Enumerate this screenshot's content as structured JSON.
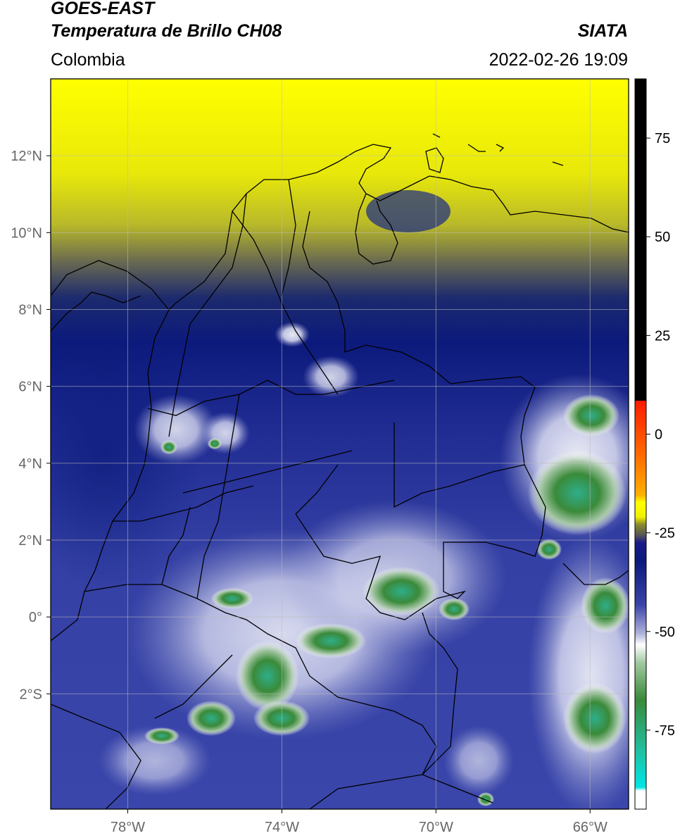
{
  "header": {
    "satellite": "GOES-EAST",
    "product": "Temperatura de Brillo CH08",
    "region": "Colombia",
    "source": "SIATA",
    "datetime": "2022-02-26 19:09"
  },
  "map": {
    "lon_range": [
      -80,
      -65
    ],
    "lat_range": [
      -5,
      14
    ],
    "lon_ticks": [
      {
        "value": -78,
        "label": "78°W"
      },
      {
        "value": -74,
        "label": "74°W"
      },
      {
        "value": -70,
        "label": "70°W"
      },
      {
        "value": -66,
        "label": "66°W"
      }
    ],
    "lat_ticks": [
      {
        "value": 12,
        "label": "12°N"
      },
      {
        "value": 10,
        "label": "10°N"
      },
      {
        "value": 8,
        "label": "8°N"
      },
      {
        "value": 6,
        "label": "6°N"
      },
      {
        "value": 4,
        "label": "4°N"
      },
      {
        "value": 2,
        "label": "2°N"
      },
      {
        "value": 0,
        "label": "0°"
      },
      {
        "value": -2,
        "label": "2°S"
      }
    ],
    "grid": true
  },
  "colorbar": {
    "range": [
      -95,
      90
    ],
    "ticks": [
      {
        "value": 75,
        "label": "75"
      },
      {
        "value": 50,
        "label": "50"
      },
      {
        "value": 25,
        "label": "25"
      },
      {
        "value": 0,
        "label": "0"
      },
      {
        "value": -25,
        "label": "-25"
      },
      {
        "value": -50,
        "label": "-50"
      },
      {
        "value": -75,
        "label": "-75"
      }
    ],
    "colors": {
      "black": "#000000",
      "red": "#ff1a00",
      "orange": "#ffb000",
      "yellow": "#ffff00",
      "olive": "#8c8c2a",
      "gray": "#555555",
      "navy": "#0a1a7a",
      "blue": "#3a44a8",
      "lavender": "#b0b4dc",
      "white": "#ffffff",
      "green": "#3a8a3a",
      "teal": "#20c0a0",
      "cyan": "#00e5e5"
    }
  }
}
